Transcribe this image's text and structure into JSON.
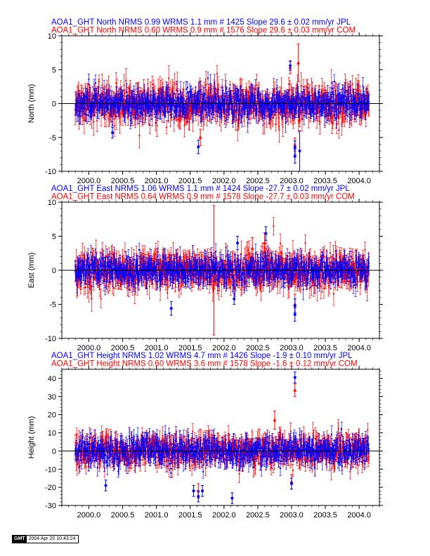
{
  "colors": {
    "jpl": "#0000ff",
    "com": "#ff0000",
    "axis": "#000000"
  },
  "chart_data": [
    {
      "type": "scatter",
      "lines": [
        {
          "text": "AOA1_GHT North NRMS 0.99 WRMS  1.1 mm # 1425 Slope   29.6 ±  0.02 mm/yr JPL",
          "color": "#0000ff"
        },
        {
          "text": "AOA1_GHT North NRMS 0.60 WRMS  0.9 mm # 1576 Slope   29.6 ±  0.03 mm/yr COM",
          "color": "#ff0000"
        }
      ],
      "ylabel": "North (mm)",
      "ylim": [
        -10,
        10
      ],
      "xlim": [
        1999.6,
        2004.3
      ],
      "yticks": [
        "-10",
        "-5",
        "0",
        "5",
        "10"
      ],
      "yticks_values": [
        -10,
        -5,
        0,
        5,
        10
      ],
      "xticks": [
        "2000.0",
        "2000.5",
        "2001.0",
        "2001.5",
        "2002.0",
        "2002.5",
        "2003.0",
        "2003.5",
        "2004.0"
      ],
      "xticks_values": [
        2000.0,
        2000.5,
        2001.0,
        2001.5,
        2002.0,
        2002.5,
        2003.0,
        2003.5,
        2004.0
      ],
      "series": [
        {
          "name": "JPL",
          "color": "#0000ff",
          "n": 1425,
          "wrms": 1.1,
          "sigma": 1.0,
          "seed": 11,
          "outliers": [
            [
              2002.98,
              5.6,
              0.7
            ],
            [
              2003.05,
              -6.5,
              1.0
            ],
            [
              2003.05,
              -7.8,
              1.0
            ],
            [
              2003.12,
              -7.0,
              3.0
            ],
            [
              2001.62,
              -6.4,
              1.0
            ],
            [
              2000.35,
              -4.3,
              0.8
            ]
          ]
        },
        {
          "name": "COM",
          "color": "#ff0000",
          "n": 1576,
          "wrms": 0.9,
          "sigma": 1.3,
          "seed": 23,
          "outliers": [
            [
              2002.98,
              5.3,
              0.9
            ],
            [
              2003.1,
              6.0,
              2.8
            ],
            [
              2003.05,
              -6.1,
              1.0
            ],
            [
              2001.65,
              -5.0,
              1.2
            ]
          ]
        }
      ]
    },
    {
      "type": "scatter",
      "lines": [
        {
          "text": "AOA1_GHT East NRMS 1.06 WRMS  1.1 mm # 1424 Slope  -27.7 ±  0.02 mm/yr JPL",
          "color": "#0000ff"
        },
        {
          "text": "AOA1_GHT East NRMS 0.64 WRMS  0.9 mm # 1578 Slope  -27.7 ±  0.03 mm/yr COM",
          "color": "#ff0000"
        }
      ],
      "ylabel": "East (mm)",
      "ylim": [
        -10,
        10
      ],
      "xlim": [
        1999.6,
        2004.3
      ],
      "yticks": [
        "-10",
        "-5",
        "0",
        "5",
        "10"
      ],
      "yticks_values": [
        -10,
        -5,
        0,
        5,
        10
      ],
      "xticks": [
        "2000.0",
        "2000.5",
        "2001.0",
        "2001.5",
        "2002.0",
        "2002.5",
        "2003.0",
        "2003.5",
        "2004.0"
      ],
      "xticks_values": [
        2000.0,
        2000.5,
        2001.0,
        2001.5,
        2002.0,
        2002.5,
        2003.0,
        2003.5,
        2004.0
      ],
      "series": [
        {
          "name": "JPL",
          "color": "#0000ff",
          "n": 1424,
          "wrms": 1.1,
          "sigma": 1.0,
          "seed": 37,
          "outliers": [
            [
              2002.62,
              5.4,
              1.0
            ],
            [
              2003.05,
              -5.2,
              1.0
            ],
            [
              2003.05,
              -6.5,
              1.0
            ],
            [
              2002.2,
              4.0,
              1.0
            ],
            [
              2001.22,
              -5.6,
              1.0
            ],
            [
              2002.15,
              -4.2,
              0.8
            ]
          ]
        },
        {
          "name": "COM",
          "color": "#ff0000",
          "n": 1578,
          "wrms": 0.9,
          "sigma": 1.3,
          "seed": 51,
          "outliers": [
            [
              2001.85,
              0.0,
              9.5
            ],
            [
              2002.6,
              4.0,
              1.5
            ],
            [
              2003.05,
              -5.0,
              1.5
            ],
            [
              2002.42,
              3.2,
              1.6
            ]
          ]
        }
      ]
    },
    {
      "type": "scatter",
      "lines": [
        {
          "text": "AOA1_GHT Height NRMS 1.02 WRMS  4.7 mm # 1426 Slope   -1.9 ±  0.10 mm/yr JPL",
          "color": "#0000ff"
        },
        {
          "text": "AOA1_GHT Height NRMS 0.60 WRMS  3.6 mm # 1578 Slope   -1.6 ±  0.12 mm/yr COM",
          "color": "#ff0000"
        }
      ],
      "ylabel": "Height (mm)",
      "ylim": [
        -30,
        45
      ],
      "xlim": [
        1999.6,
        2004.3
      ],
      "yticks": [
        "-30",
        "-20",
        "-10",
        "0",
        "10",
        "20",
        "30",
        "40"
      ],
      "yticks_values": [
        -30,
        -20,
        -10,
        0,
        10,
        20,
        30,
        40
      ],
      "xticks": [
        "2000.0",
        "2000.5",
        "2001.0",
        "2001.5",
        "2002.0",
        "2002.5",
        "2003.0",
        "2003.5",
        "2004.0"
      ],
      "xticks_values": [
        2000.0,
        2000.5,
        2001.0,
        2001.5,
        2002.0,
        2002.5,
        2003.0,
        2003.5,
        2004.0
      ],
      "series": [
        {
          "name": "JPL",
          "color": "#0000ff",
          "n": 1426,
          "wrms": 4.7,
          "sigma": 3.5,
          "seed": 67,
          "outliers": [
            [
              2003.05,
              40.5,
              3.0
            ],
            [
              2001.62,
              -25.0,
              3.0
            ],
            [
              2001.68,
              -22.0,
              3.0
            ],
            [
              2002.12,
              -26.0,
              3.0
            ],
            [
              2000.25,
              -19.0,
              3.0
            ],
            [
              2003.0,
              -18.0,
              3.0
            ],
            [
              2001.55,
              -22.0,
              3.0
            ]
          ]
        },
        {
          "name": "COM",
          "color": "#ff0000",
          "n": 1578,
          "wrms": 3.6,
          "sigma": 4.0,
          "seed": 79,
          "outliers": [
            [
              2003.05,
              33.5,
              3.5
            ],
            [
              2003.0,
              -17.0,
              4.0
            ],
            [
              2002.75,
              17.0,
              5.0
            ],
            [
              2001.62,
              -22.0,
              4.0
            ]
          ]
        }
      ]
    }
  ],
  "footer": {
    "logo": "GMT",
    "timestamp": "2004 Apr 20 10:43:24"
  }
}
